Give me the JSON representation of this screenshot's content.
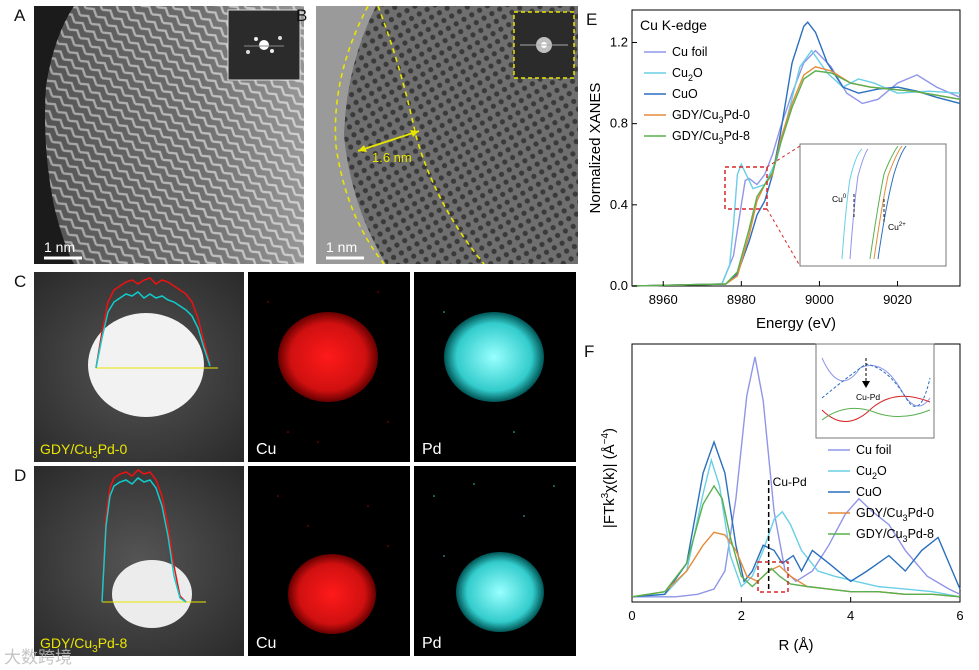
{
  "panels": {
    "a": {
      "letter": "A",
      "scale": "1 nm"
    },
    "b": {
      "letter": "B",
      "scale": "1 nm",
      "measure": "1.6 nm"
    },
    "c": {
      "letter": "C",
      "sample": "GDY/Cu",
      "sample_sub": "3",
      "sample_tail": "Pd-0",
      "cu": "Cu",
      "pd": "Pd"
    },
    "d": {
      "letter": "D",
      "sample": "GDY/Cu",
      "sample_sub": "3",
      "sample_tail": "Pd-8",
      "cu": "Cu",
      "pd": "Pd"
    },
    "e": {
      "letter": "E"
    },
    "f": {
      "letter": "F"
    }
  },
  "colors": {
    "cu_foil": "#8f95e8",
    "cu2o": "#69cfe6",
    "cuo": "#2a6fbd",
    "gdy0": "#e58b3c",
    "gdy8": "#58b04f",
    "highlight": "#d62728",
    "hrtem": "#e8e500"
  },
  "chart_data": [
    {
      "type": "line",
      "id": "E",
      "title": "Cu K-edge",
      "xlabel": "Energy (eV)",
      "ylabel": "Normalized XANES",
      "xlim": [
        8952,
        9036
      ],
      "ylim": [
        0,
        1.36
      ],
      "xticks": [
        8960,
        8980,
        9000,
        9020
      ],
      "yticks": [
        0.0,
        0.4,
        0.8,
        1.2
      ],
      "ytick_labels": [
        "0.0",
        "0.4",
        "0.8",
        "1.2"
      ],
      "legend": "top-left",
      "series": [
        {
          "name": "Cu foil",
          "x": [
            8952,
            8975,
            8978,
            8980,
            8981,
            8982,
            8984,
            8986,
            8988,
            8990,
            8993,
            8996,
            8999,
            9003,
            9007,
            9011,
            9015,
            9020,
            9025,
            9030,
            9036
          ],
          "y": [
            0,
            0.01,
            0.15,
            0.4,
            0.52,
            0.53,
            0.5,
            0.55,
            0.65,
            0.78,
            0.95,
            1.1,
            1.16,
            1.08,
            0.95,
            0.9,
            0.92,
            1.0,
            1.04,
            0.98,
            0.93
          ]
        },
        {
          "name": "Cu2O",
          "x": [
            8952,
            8975,
            8977,
            8978,
            8979,
            8980,
            8981,
            8983,
            8986,
            8989,
            8992,
            8995,
            8998,
            9002,
            9006,
            9010,
            9014,
            9020,
            9028,
            9036
          ],
          "y": [
            0,
            0.01,
            0.1,
            0.3,
            0.55,
            0.6,
            0.56,
            0.48,
            0.5,
            0.62,
            0.85,
            1.08,
            1.16,
            1.05,
            0.98,
            1.02,
            1.0,
            0.95,
            0.96,
            0.95
          ]
        },
        {
          "name": "CuO",
          "x": [
            8952,
            8976,
            8979,
            8982,
            8984,
            8986,
            8988,
            8990,
            8993,
            8996,
            8997,
            8999,
            9002,
            9006,
            9010,
            9015,
            9020,
            9025,
            9030,
            9036
          ],
          "y": [
            0,
            0.01,
            0.06,
            0.22,
            0.35,
            0.42,
            0.55,
            0.75,
            1.1,
            1.28,
            1.3,
            1.25,
            1.1,
            0.98,
            0.95,
            0.97,
            0.98,
            0.96,
            0.93,
            0.9
          ]
        },
        {
          "name": "GDY/Cu3Pd-0",
          "x": [
            8952,
            8976,
            8979,
            8982,
            8984,
            8986,
            8988,
            8990,
            8993,
            8996,
            8999,
            9003,
            9008,
            9013,
            9018,
            9024,
            9030,
            9036
          ],
          "y": [
            0,
            0.01,
            0.05,
            0.25,
            0.42,
            0.5,
            0.55,
            0.72,
            0.9,
            1.04,
            1.08,
            1.06,
            1.0,
            0.98,
            0.97,
            0.96,
            0.94,
            0.92
          ]
        },
        {
          "name": "GDY/Cu3Pd-8",
          "x": [
            8952,
            8976,
            8979,
            8982,
            8984,
            8986,
            8988,
            8990,
            8993,
            8996,
            8999,
            9003,
            9008,
            9013,
            9018,
            9024,
            9030,
            9036
          ],
          "y": [
            0,
            0.01,
            0.07,
            0.28,
            0.44,
            0.5,
            0.56,
            0.7,
            0.88,
            1.02,
            1.06,
            1.05,
            1.0,
            0.98,
            0.97,
            0.96,
            0.94,
            0.92
          ]
        }
      ],
      "inset": {
        "label_left": "Cu",
        "label_left_sup": "0",
        "label_right": "Cu",
        "label_right_sup": "2+"
      }
    },
    {
      "type": "line",
      "id": "F",
      "xlabel": "R (Å)",
      "ylabel_parts": [
        "|FTk",
        "3",
        "χ(k)| (Å",
        "−4",
        ")"
      ],
      "xlim": [
        0,
        6
      ],
      "ylim": [
        0,
        1
      ],
      "xticks": [
        0,
        2,
        4,
        6
      ],
      "xtick_labels": [
        "0",
        "2",
        "4",
        "6"
      ],
      "legend": "right",
      "annotation": "Cu-Pd",
      "annotation_x": 2.5,
      "series": [
        {
          "name": "Cu foil",
          "x": [
            0,
            0.8,
            1.2,
            1.5,
            1.7,
            1.9,
            2.1,
            2.25,
            2.4,
            2.6,
            2.8,
            3.0,
            3.3,
            3.6,
            3.9,
            4.15,
            4.4,
            4.7,
            5.0,
            5.4,
            5.8,
            6.0
          ],
          "y": [
            0.02,
            0.02,
            0.03,
            0.05,
            0.12,
            0.4,
            0.8,
            0.95,
            0.78,
            0.35,
            0.12,
            0.08,
            0.12,
            0.22,
            0.34,
            0.4,
            0.35,
            0.3,
            0.2,
            0.1,
            0.05,
            0.03
          ]
        },
        {
          "name": "Cu2O",
          "x": [
            0,
            0.6,
            1.0,
            1.3,
            1.45,
            1.6,
            1.8,
            2.0,
            2.2,
            2.4,
            2.6,
            2.75,
            2.9,
            3.1,
            3.4,
            3.7,
            4.1,
            4.5,
            5.0,
            5.5,
            6.0
          ],
          "y": [
            0.02,
            0.03,
            0.12,
            0.42,
            0.55,
            0.45,
            0.18,
            0.06,
            0.1,
            0.2,
            0.32,
            0.35,
            0.3,
            0.2,
            0.12,
            0.1,
            0.08,
            0.06,
            0.05,
            0.04,
            0.02
          ]
        },
        {
          "name": "CuO",
          "x": [
            0,
            0.6,
            1.0,
            1.3,
            1.5,
            1.7,
            1.9,
            2.05,
            2.2,
            2.4,
            2.6,
            2.75,
            2.95,
            3.1,
            3.3,
            3.6,
            4.0,
            4.3,
            4.7,
            5.0,
            5.3,
            5.6,
            6.0
          ],
          "y": [
            0.02,
            0.03,
            0.15,
            0.5,
            0.62,
            0.5,
            0.22,
            0.08,
            0.12,
            0.22,
            0.2,
            0.15,
            0.18,
            0.12,
            0.2,
            0.15,
            0.08,
            0.12,
            0.18,
            0.12,
            0.2,
            0.25,
            0.05
          ]
        },
        {
          "name": "GDY/Cu3Pd-0",
          "x": [
            0,
            0.6,
            1.0,
            1.3,
            1.5,
            1.7,
            1.9,
            2.1,
            2.3,
            2.5,
            2.7,
            2.9,
            3.2,
            3.6,
            4.0,
            4.5,
            5.0,
            5.5,
            6.0
          ],
          "y": [
            0.02,
            0.04,
            0.12,
            0.22,
            0.27,
            0.26,
            0.2,
            0.1,
            0.08,
            0.12,
            0.14,
            0.1,
            0.06,
            0.05,
            0.04,
            0.04,
            0.03,
            0.03,
            0.02
          ]
        },
        {
          "name": "GDY/Cu3Pd-8",
          "x": [
            0,
            0.6,
            1.0,
            1.3,
            1.5,
            1.65,
            1.8,
            2.0,
            2.2,
            2.4,
            2.55,
            2.7,
            2.9,
            3.2,
            3.6,
            4.0,
            4.5,
            5.0,
            5.5,
            6.0
          ],
          "y": [
            0.02,
            0.04,
            0.15,
            0.38,
            0.45,
            0.4,
            0.25,
            0.1,
            0.06,
            0.1,
            0.13,
            0.1,
            0.07,
            0.06,
            0.05,
            0.04,
            0.04,
            0.03,
            0.03,
            0.02
          ]
        }
      ]
    }
  ],
  "watermark": "大数跨境"
}
